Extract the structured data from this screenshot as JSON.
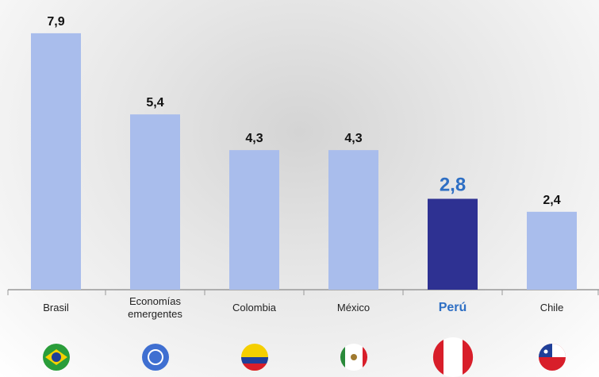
{
  "chart_data": {
    "type": "bar",
    "categories": [
      "Brasil",
      "Economías emergentes",
      "Colombia",
      "México",
      "Perú",
      "Chile"
    ],
    "values": [
      7.9,
      5.4,
      4.3,
      4.3,
      2.8,
      2.4
    ],
    "value_labels": [
      "7,9",
      "5,4",
      "4,3",
      "4,3",
      "2,8",
      "2,4"
    ],
    "colors": [
      "#a9bdec",
      "#a9bdec",
      "#a9bdec",
      "#a9bdec",
      "#2e3192",
      "#a9bdec"
    ]
  }
}
